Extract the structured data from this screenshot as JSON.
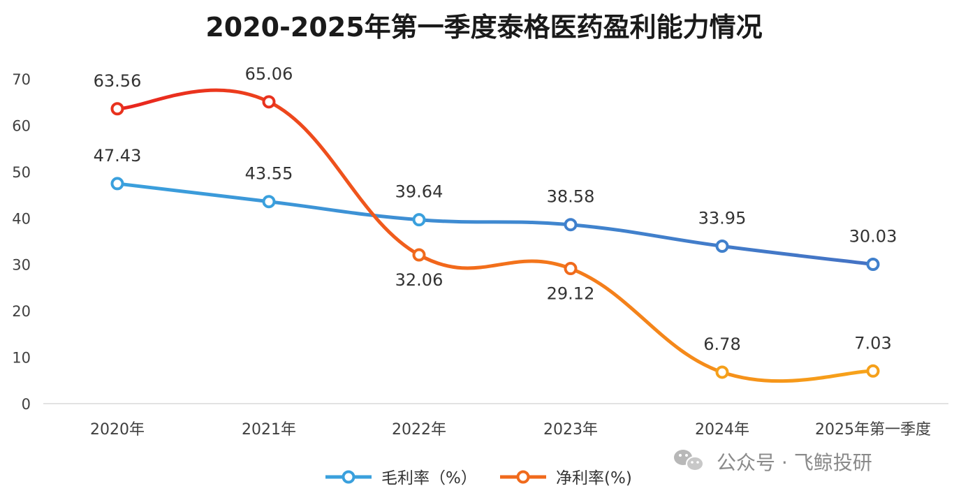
{
  "chart_data": {
    "type": "line",
    "title": "2020-2025年第一季度泰格医药盈利能力情况",
    "categories": [
      "2020年",
      "2021年",
      "2022年",
      "2023年",
      "2024年",
      "2025年第一季度"
    ],
    "ylim": [
      0,
      70
    ],
    "yticks": [
      0,
      10,
      20,
      30,
      40,
      50,
      60,
      70
    ],
    "grid": false,
    "legend_position": "bottom",
    "series": [
      {
        "name": "毛利率（%）",
        "values": [
          47.43,
          43.55,
          39.64,
          38.58,
          33.95,
          30.03
        ],
        "labels": [
          "47.43",
          "43.55",
          "39.64",
          "38.58",
          "33.95",
          "30.03"
        ],
        "color": "#3a9ad9",
        "color_end": "#4472c4"
      },
      {
        "name": "净利率(%)",
        "values": [
          63.56,
          65.06,
          32.06,
          29.12,
          6.78,
          7.03
        ],
        "labels": [
          "63.56",
          "65.06",
          "32.06",
          "29.12",
          "6.78",
          "7.03"
        ],
        "color": "#e8321e",
        "color_end": "#f5a01a"
      }
    ]
  },
  "watermark": {
    "text": "公众号 · 飞鲸投研",
    "icon": "wechat-icon"
  }
}
